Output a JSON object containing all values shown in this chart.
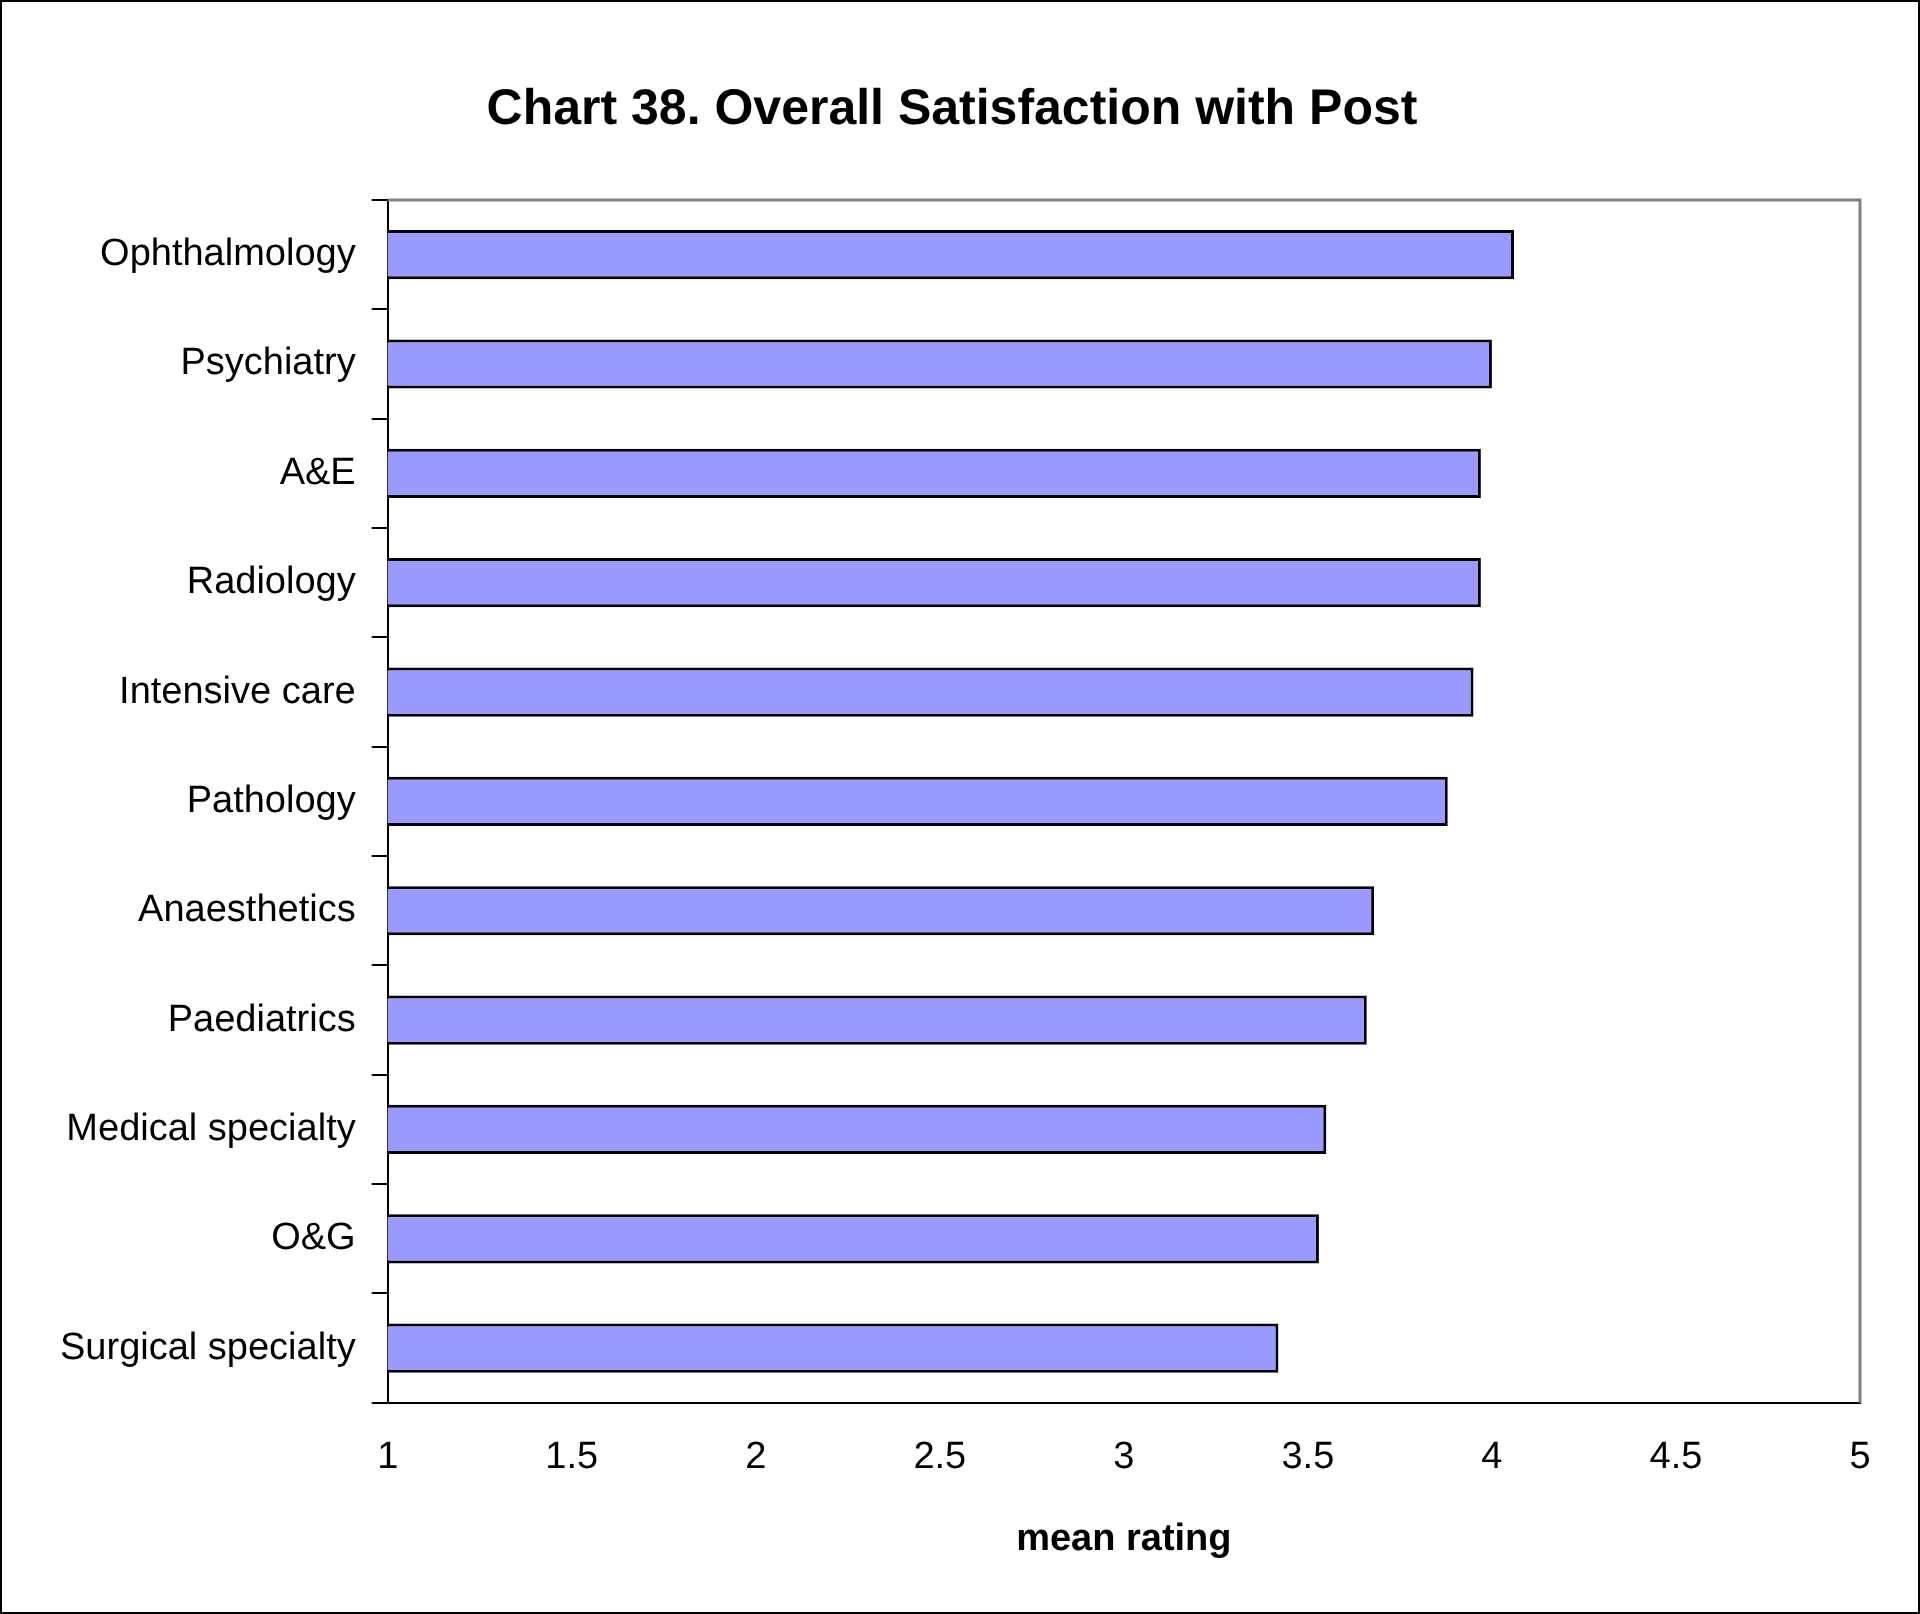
{
  "chart_data": {
    "type": "bar",
    "orientation": "horizontal",
    "title": "Chart 38. Overall Satisfaction with Post",
    "xlabel": "mean rating",
    "categories": [
      "Ophthalmology",
      "Psychiatry",
      "A&E",
      "Radiology",
      "Intensive care",
      "Pathology",
      "Anaesthetics",
      "Paediatrics",
      "Medical specialty",
      "O&G",
      "Surgical specialty"
    ],
    "values": [
      4.06,
      4.0,
      3.97,
      3.97,
      3.95,
      3.88,
      3.68,
      3.66,
      3.55,
      3.53,
      3.42
    ],
    "color": "#9999ff",
    "xlim": [
      1,
      5
    ],
    "xticks": [
      1,
      1.5,
      2,
      2.5,
      3,
      3.5,
      4,
      4.5,
      5
    ],
    "grid": false,
    "legend": false
  }
}
